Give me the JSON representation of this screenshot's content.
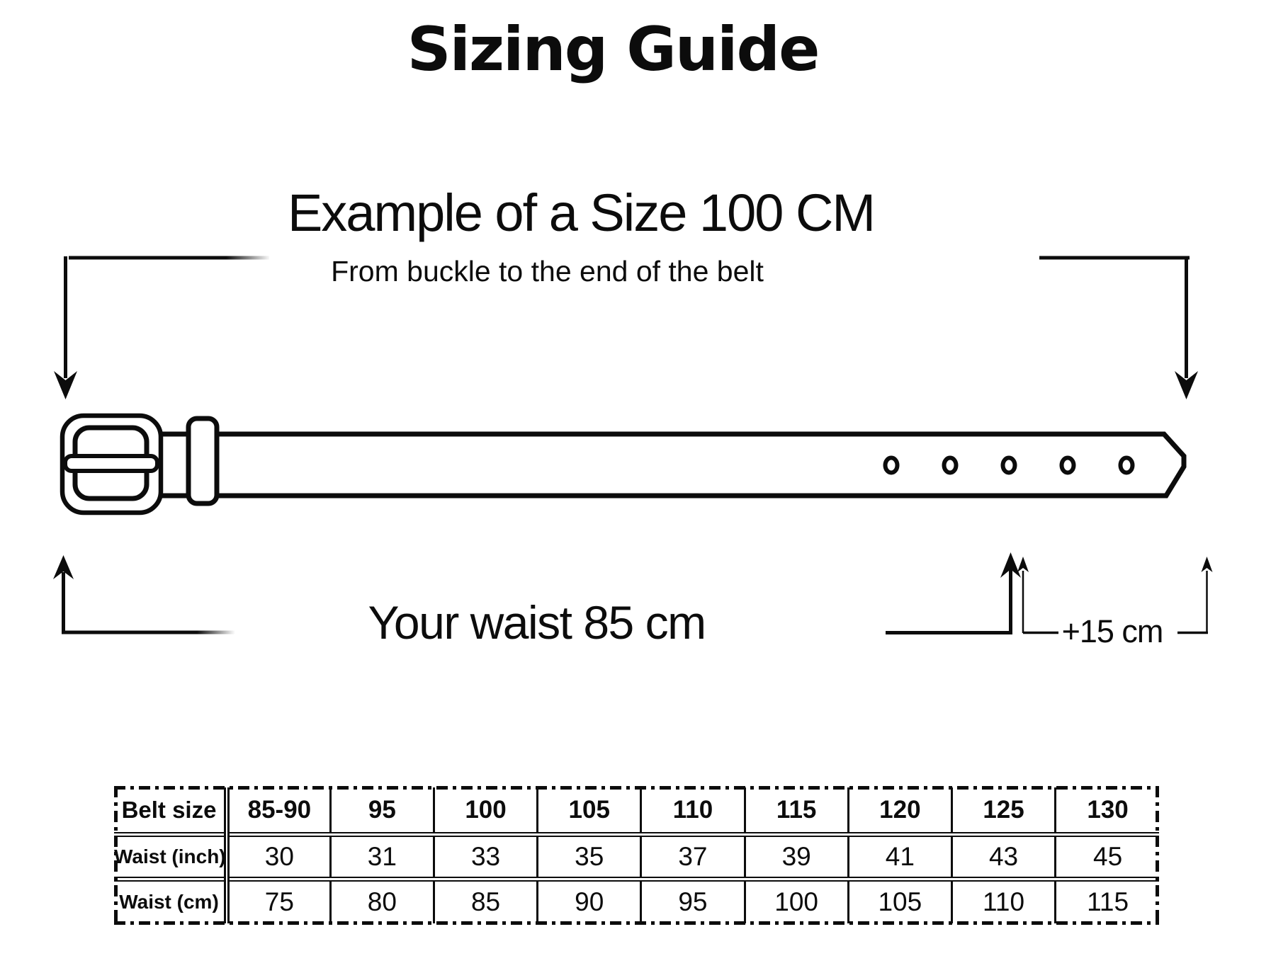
{
  "colors": {
    "ink": "#0c0c0c",
    "background": "#ffffff"
  },
  "title": "Sizing Guide",
  "diagram": {
    "heading": "Example of a Size 100 CM",
    "subheading": "From buckle to the end of the belt",
    "waist_label": "Your waist 85 cm",
    "tip_allowance_label": "+15 cm",
    "belt": {
      "hole_count": 5
    }
  },
  "size_table": {
    "header": {
      "label": "Belt size",
      "sizes": [
        "85-90",
        "95",
        "100",
        "105",
        "110",
        "115",
        "120",
        "125",
        "130"
      ]
    },
    "rows": [
      {
        "label": "Waist (inch)",
        "values": [
          "30",
          "31",
          "33",
          "35",
          "37",
          "39",
          "41",
          "43",
          "45"
        ]
      },
      {
        "label": "Waist (cm)",
        "values": [
          "75",
          "80",
          "85",
          "90",
          "95",
          "100",
          "105",
          "110",
          "115"
        ]
      }
    ]
  }
}
